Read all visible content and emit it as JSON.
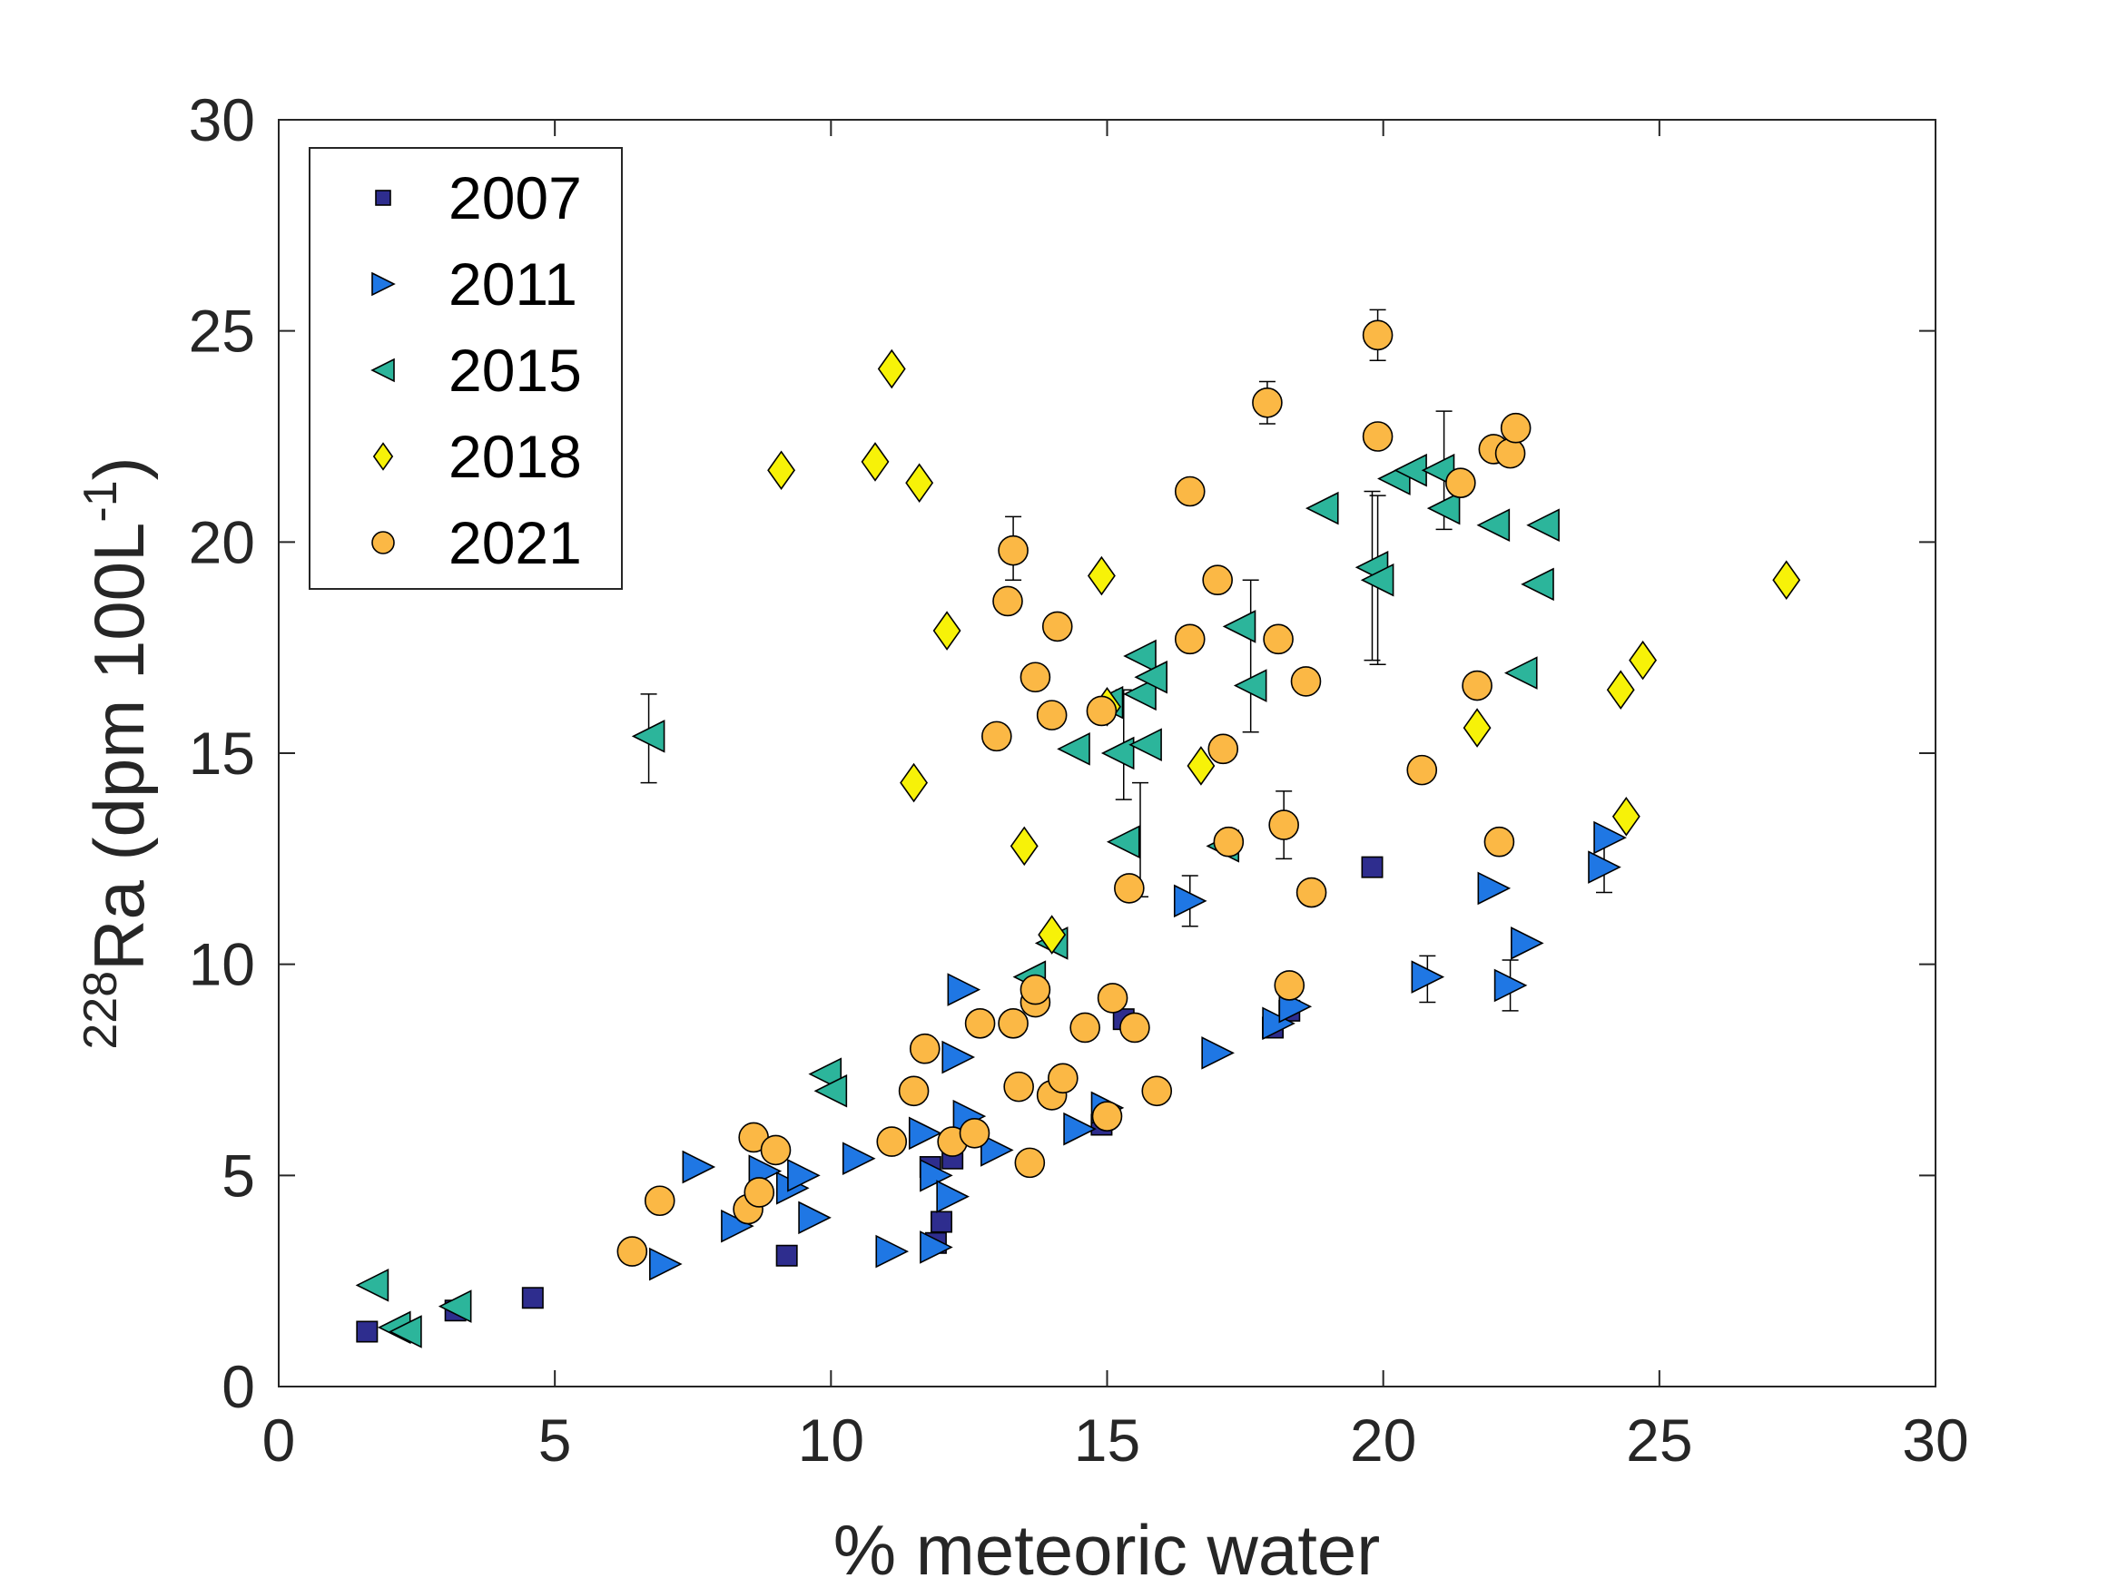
{
  "chart_data": {
    "type": "scatter",
    "xlabel": "% meteoric water",
    "ylabel": {
      "sup": "228",
      "main": "Ra (dpm 100L",
      "sup2": "-1",
      "close": ")"
    },
    "xlim": [
      0,
      30
    ],
    "ylim": [
      0,
      30
    ],
    "xticks": [
      0,
      5,
      10,
      15,
      20,
      25,
      30
    ],
    "yticks": [
      0,
      5,
      10,
      15,
      20,
      25,
      30
    ],
    "grid": false,
    "legend_position": "top-left",
    "series": [
      {
        "name": "2007",
        "marker": "square",
        "color": "#2e2d8e",
        "points": [
          [
            1.6,
            1.3
          ],
          [
            3.2,
            1.8
          ],
          [
            4.6,
            2.1
          ],
          [
            9.2,
            3.1
          ],
          [
            11.8,
            5.2
          ],
          [
            12.0,
            3.9
          ],
          [
            11.9,
            3.4
          ],
          [
            12.2,
            5.4
          ],
          [
            14.9,
            6.2
          ],
          [
            15.3,
            8.7
          ],
          [
            18.0,
            8.5
          ],
          [
            18.3,
            8.9
          ],
          [
            19.8,
            12.3
          ]
        ]
      },
      {
        "name": "2011",
        "marker": "triangle-right",
        "color": "#1f77e4",
        "points": [
          [
            7.0,
            2.9
          ],
          [
            7.6,
            5.2
          ],
          [
            8.3,
            3.8
          ],
          [
            8.8,
            5.1
          ],
          [
            9.3,
            4.7
          ],
          [
            9.5,
            5.0
          ],
          [
            9.7,
            4.0
          ],
          [
            10.5,
            5.4
          ],
          [
            11.1,
            3.2
          ],
          [
            11.7,
            6.0
          ],
          [
            11.9,
            5.0
          ],
          [
            11.9,
            3.3
          ],
          [
            12.2,
            4.5
          ],
          [
            12.3,
            7.8
          ],
          [
            12.4,
            9.4
          ],
          [
            12.5,
            6.4
          ],
          [
            13.0,
            5.6
          ],
          [
            14.5,
            6.1
          ],
          [
            15.0,
            6.6
          ],
          [
            16.5,
            11.5
          ],
          [
            17.0,
            7.9
          ],
          [
            18.1,
            8.6
          ],
          [
            18.4,
            9.0
          ],
          [
            20.8,
            9.7
          ],
          [
            22.0,
            11.8
          ],
          [
            22.3,
            9.5
          ],
          [
            22.6,
            10.5
          ],
          [
            24.0,
            12.3
          ],
          [
            24.1,
            13.0
          ]
        ]
      },
      {
        "name": "2015",
        "marker": "triangle-left",
        "color": "#2cb59b",
        "points": [
          [
            1.7,
            2.4
          ],
          [
            2.1,
            1.4
          ],
          [
            2.3,
            1.3
          ],
          [
            3.2,
            1.9
          ],
          [
            6.7,
            15.4
          ],
          [
            9.9,
            7.4
          ],
          [
            10.0,
            7.0
          ],
          [
            13.6,
            9.7
          ],
          [
            14.0,
            10.5
          ],
          [
            14.4,
            15.1
          ],
          [
            15.0,
            16.2
          ],
          [
            15.2,
            15.0
          ],
          [
            15.3,
            12.9
          ],
          [
            15.6,
            16.4
          ],
          [
            15.6,
            17.3
          ],
          [
            15.7,
            15.2
          ],
          [
            15.8,
            16.8
          ],
          [
            17.1,
            12.8
          ],
          [
            17.4,
            18.0
          ],
          [
            17.6,
            16.6
          ],
          [
            18.9,
            20.8
          ],
          [
            19.8,
            19.4
          ],
          [
            19.9,
            19.1
          ],
          [
            20.2,
            21.5
          ],
          [
            20.5,
            21.7
          ],
          [
            21.0,
            21.7
          ],
          [
            21.1,
            20.8
          ],
          [
            22.0,
            20.4
          ],
          [
            22.5,
            16.9
          ],
          [
            22.8,
            19.0
          ],
          [
            22.9,
            20.4
          ]
        ]
      },
      {
        "name": "2018",
        "marker": "diamond",
        "color": "#f7f208",
        "points": [
          [
            9.1,
            21.7
          ],
          [
            10.8,
            21.9
          ],
          [
            11.1,
            24.1
          ],
          [
            11.5,
            14.3
          ],
          [
            11.6,
            21.4
          ],
          [
            12.1,
            17.9
          ],
          [
            13.5,
            12.8
          ],
          [
            14.0,
            10.7
          ],
          [
            14.9,
            19.2
          ],
          [
            15.0,
            16.1
          ],
          [
            16.7,
            14.7
          ],
          [
            21.7,
            15.6
          ],
          [
            24.3,
            16.5
          ],
          [
            24.4,
            13.5
          ],
          [
            24.7,
            17.2
          ],
          [
            27.3,
            19.1
          ]
        ]
      },
      {
        "name": "2021",
        "marker": "circle",
        "color": "#fbb845",
        "points": [
          [
            6.4,
            3.2
          ],
          [
            6.9,
            4.4
          ],
          [
            8.5,
            4.2
          ],
          [
            8.6,
            5.9
          ],
          [
            8.7,
            4.6
          ],
          [
            9.0,
            5.6
          ],
          [
            11.1,
            5.8
          ],
          [
            11.5,
            7.0
          ],
          [
            11.7,
            8.0
          ],
          [
            12.2,
            5.8
          ],
          [
            12.6,
            6.0
          ],
          [
            12.7,
            8.6
          ],
          [
            13.0,
            15.4
          ],
          [
            13.2,
            18.6
          ],
          [
            13.3,
            19.8
          ],
          [
            13.3,
            8.6
          ],
          [
            13.4,
            7.1
          ],
          [
            13.6,
            5.3
          ],
          [
            13.7,
            9.1
          ],
          [
            13.7,
            9.4
          ],
          [
            13.7,
            16.8
          ],
          [
            14.0,
            15.9
          ],
          [
            14.0,
            6.9
          ],
          [
            14.1,
            18.0
          ],
          [
            14.2,
            7.3
          ],
          [
            14.6,
            8.5
          ],
          [
            14.9,
            16.0
          ],
          [
            15.0,
            6.4
          ],
          [
            15.1,
            9.2
          ],
          [
            15.4,
            11.8
          ],
          [
            15.5,
            8.5
          ],
          [
            15.9,
            7.0
          ],
          [
            16.5,
            21.2
          ],
          [
            16.5,
            17.7
          ],
          [
            17.0,
            19.1
          ],
          [
            17.1,
            15.1
          ],
          [
            17.2,
            12.9
          ],
          [
            17.9,
            23.3
          ],
          [
            18.1,
            17.7
          ],
          [
            18.2,
            13.3
          ],
          [
            18.3,
            9.5
          ],
          [
            18.6,
            16.7
          ],
          [
            18.7,
            11.7
          ],
          [
            19.9,
            24.9
          ],
          [
            19.9,
            22.5
          ],
          [
            20.7,
            14.6
          ],
          [
            21.4,
            21.4
          ],
          [
            21.7,
            16.6
          ],
          [
            22.0,
            22.2
          ],
          [
            22.1,
            12.9
          ],
          [
            22.3,
            22.1
          ],
          [
            22.4,
            22.7
          ]
        ]
      }
    ],
    "error_bars": [
      {
        "x": 6.7,
        "y_low": 14.3,
        "y_high": 16.4
      },
      {
        "x": 13.3,
        "y_low": 19.1,
        "y_high": 20.6
      },
      {
        "x": 15.3,
        "y_low": 13.9,
        "y_high": 16.5
      },
      {
        "x": 15.6,
        "y_low": 11.6,
        "y_high": 14.3
      },
      {
        "x": 17.6,
        "y_low": 15.5,
        "y_high": 19.1
      },
      {
        "x": 19.8,
        "y_low": 17.2,
        "y_high": 21.2
      },
      {
        "x": 19.9,
        "y_low": 17.1,
        "y_high": 21.1
      },
      {
        "x": 21.1,
        "y_low": 20.3,
        "y_high": 23.1
      },
      {
        "x": 16.5,
        "y_low": 10.9,
        "y_high": 12.1
      },
      {
        "x": 20.8,
        "y_low": 9.1,
        "y_high": 10.2
      },
      {
        "x": 22.3,
        "y_low": 8.9,
        "y_high": 10.1
      },
      {
        "x": 24.0,
        "y_low": 11.7,
        "y_high": 12.9
      },
      {
        "x": 19.9,
        "y_low": 24.3,
        "y_high": 25.5
      },
      {
        "x": 17.9,
        "y_low": 22.8,
        "y_high": 23.8
      },
      {
        "x": 18.2,
        "y_low": 12.5,
        "y_high": 14.1
      }
    ]
  }
}
